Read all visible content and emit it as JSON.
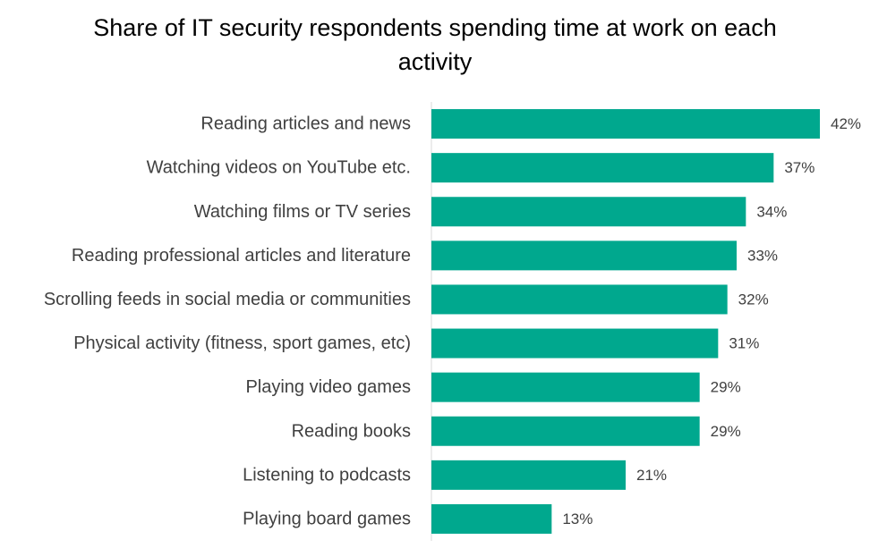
{
  "chart_data": {
    "type": "bar",
    "orientation": "horizontal",
    "title": "Share of IT security respondents spending time at work on each activity",
    "categories": [
      "Reading articles and news",
      "Watching videos on YouTube etc.",
      "Watching films or TV series",
      "Reading professional articles and literature",
      "Scrolling feeds in social media or communities",
      "Physical activity (fitness, sport games, etc)",
      "Playing video games",
      "Reading books",
      "Listening to podcasts",
      "Playing board games"
    ],
    "values": [
      42,
      37,
      34,
      33,
      32,
      31,
      29,
      29,
      21,
      13
    ],
    "value_labels": [
      "42%",
      "37%",
      "34%",
      "33%",
      "32%",
      "31%",
      "29%",
      "29%",
      "21%",
      "13%"
    ],
    "unit": "%",
    "xlabel": "",
    "ylabel": "",
    "xlim": [
      0,
      42
    ],
    "grid": false,
    "legend": "none",
    "bar_color": "#00A88E",
    "axis_color": "#D9D9D9",
    "label_color": "#404040"
  }
}
